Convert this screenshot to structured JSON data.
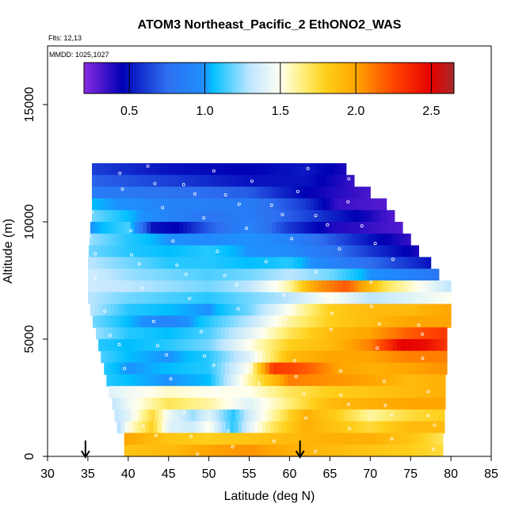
{
  "chart_data": {
    "type": "heatmap",
    "title": "ATOM3 Northeast_Pacific_2 EthONO2_WAS",
    "flights_label": "Flts: 12,13",
    "dates_label": "MMDD: 1025,1027",
    "xlabel": "Latitude (deg N)",
    "ylabel": "Altitude (m)",
    "xlim": [
      30,
      85
    ],
    "ylim": [
      0,
      17500
    ],
    "x_ticks": [
      "30",
      "35",
      "40",
      "45",
      "50",
      "55",
      "60",
      "65",
      "70",
      "75",
      "80",
      "85"
    ],
    "y_ticks": [
      "0",
      "5000",
      "10000",
      "15000"
    ],
    "colorbar": {
      "range": [
        0.2,
        2.65
      ],
      "ticks": [
        "0.5",
        "1.0",
        "1.5",
        "2.0",
        "2.5"
      ],
      "stops": [
        {
          "v": 0.2,
          "c": "#8a2be2"
        },
        {
          "v": 0.45,
          "c": "#0000b4"
        },
        {
          "v": 0.75,
          "c": "#2e6ff0"
        },
        {
          "v": 1.0,
          "c": "#1e90ff"
        },
        {
          "v": 1.05,
          "c": "#00bfff"
        },
        {
          "v": 1.3,
          "c": "#bfe6ff"
        },
        {
          "v": 1.5,
          "c": "#fffff0"
        },
        {
          "v": 1.65,
          "c": "#ffef7a"
        },
        {
          "v": 1.8,
          "c": "#ffcf1a"
        },
        {
          "v": 2.0,
          "c": "#ffa500"
        },
        {
          "v": 2.25,
          "c": "#ff4500"
        },
        {
          "v": 2.5,
          "c": "#e60000"
        },
        {
          "v": 2.65,
          "c": "#a52a2a"
        }
      ]
    },
    "arrows_lat": [
      34.7,
      61.3
    ],
    "altitude_bins": [
      {
        "alt": 12250,
        "lat_min": 35.5,
        "lat_max": 67,
        "x": [
          35.5,
          45,
          55,
          62,
          67
        ],
        "v": [
          0.62,
          0.5,
          0.45,
          0.52,
          0.4
        ]
      },
      {
        "alt": 11750,
        "lat_min": 35.5,
        "lat_max": 68,
        "x": [
          35.5,
          45,
          55,
          62,
          68
        ],
        "v": [
          0.72,
          0.62,
          0.5,
          0.5,
          0.35
        ]
      },
      {
        "alt": 11250,
        "lat_min": 35.5,
        "lat_max": 70,
        "x": [
          35.5,
          45,
          55,
          62,
          70
        ],
        "v": [
          0.85,
          0.78,
          0.7,
          0.45,
          0.32
        ]
      },
      {
        "alt": 10750,
        "lat_min": 35.5,
        "lat_max": 72,
        "x": [
          35.5,
          45,
          55,
          62,
          66,
          72
        ],
        "v": [
          1.05,
          0.9,
          0.85,
          0.6,
          0.35,
          0.3
        ]
      },
      {
        "alt": 10250,
        "lat_min": 35.5,
        "lat_max": 73,
        "x": [
          35.5,
          40,
          45,
          50,
          55,
          60,
          65,
          70,
          73
        ],
        "v": [
          1.2,
          1.05,
          0.9,
          0.8,
          0.85,
          0.7,
          0.55,
          0.4,
          0.3
        ]
      },
      {
        "alt": 9750,
        "lat_min": 35.3,
        "lat_max": 74,
        "x": [
          35.3,
          40,
          43,
          46,
          50,
          55,
          60,
          65,
          70,
          74
        ],
        "v": [
          1.0,
          1.15,
          0.5,
          0.45,
          0.7,
          0.9,
          0.6,
          0.4,
          0.35,
          0.3
        ]
      },
      {
        "alt": 9250,
        "lat_min": 35.2,
        "lat_max": 75,
        "x": [
          35.2,
          40,
          45,
          50,
          55,
          60,
          65,
          70,
          75
        ],
        "v": [
          1.25,
          1.1,
          1.0,
          0.95,
          1.0,
          0.9,
          0.7,
          0.5,
          0.35
        ]
      },
      {
        "alt": 8750,
        "lat_min": 35.1,
        "lat_max": 76,
        "x": [
          35.1,
          40,
          45,
          50,
          55,
          60,
          65,
          70,
          76
        ],
        "v": [
          1.2,
          1.1,
          1.05,
          1.1,
          1.0,
          0.95,
          0.8,
          0.6,
          0.4
        ]
      },
      {
        "alt": 8250,
        "lat_min": 35,
        "lat_max": 77.5,
        "x": [
          35,
          40,
          45,
          50,
          55,
          60,
          65,
          70,
          77.5
        ],
        "v": [
          1.3,
          1.2,
          1.1,
          1.1,
          1.05,
          1.1,
          0.9,
          0.75,
          0.5
        ]
      },
      {
        "alt": 7750,
        "lat_min": 35,
        "lat_max": 78.5,
        "x": [
          35,
          40,
          45,
          50,
          55,
          60,
          65,
          70,
          78.5
        ],
        "v": [
          1.35,
          1.25,
          1.2,
          1.15,
          1.2,
          1.3,
          1.2,
          1.0,
          0.8
        ]
      },
      {
        "alt": 7250,
        "lat_min": 35,
        "lat_max": 80,
        "x": [
          35,
          40,
          45,
          50,
          55,
          60,
          63,
          67,
          72,
          80
        ],
        "v": [
          1.35,
          1.3,
          1.25,
          1.2,
          1.3,
          1.6,
          2.0,
          2.2,
          1.7,
          1.3
        ]
      },
      {
        "alt": 6750,
        "lat_min": 35,
        "lat_max": 80,
        "x": [
          35,
          40,
          45,
          50,
          55,
          60,
          65,
          70,
          75,
          80
        ],
        "v": [
          1.3,
          1.2,
          1.15,
          1.1,
          1.2,
          1.3,
          1.5,
          1.3,
          1.4,
          1.5
        ]
      },
      {
        "alt": 6250,
        "lat_min": 35.3,
        "lat_max": 80,
        "x": [
          35.3,
          40,
          45,
          50,
          55,
          60,
          65,
          70,
          75,
          80
        ],
        "v": [
          1.3,
          1.1,
          1.05,
          1.0,
          1.2,
          1.5,
          1.8,
          1.9,
          1.9,
          2.0
        ]
      },
      {
        "alt": 5750,
        "lat_min": 35.6,
        "lat_max": 80,
        "x": [
          35.6,
          40,
          45,
          50,
          55,
          60,
          65,
          70,
          75,
          80
        ],
        "v": [
          1.2,
          1.05,
          0.9,
          1.1,
          1.3,
          1.6,
          1.8,
          1.9,
          2.0,
          2.0
        ]
      },
      {
        "alt": 5250,
        "lat_min": 36,
        "lat_max": 79.5,
        "x": [
          36,
          40,
          45,
          50,
          55,
          60,
          65,
          70,
          75,
          79.5
        ],
        "v": [
          1.25,
          1.1,
          1.05,
          1.15,
          1.4,
          1.7,
          1.9,
          2.0,
          2.2,
          2.3
        ]
      },
      {
        "alt": 4750,
        "lat_min": 36.3,
        "lat_max": 79.5,
        "x": [
          36.3,
          40,
          45,
          50,
          55,
          60,
          65,
          70,
          74,
          77,
          79.5
        ],
        "v": [
          1.1,
          1.05,
          1.1,
          1.2,
          1.5,
          1.8,
          1.9,
          2.1,
          2.5,
          2.45,
          2.3
        ]
      },
      {
        "alt": 4250,
        "lat_min": 36.6,
        "lat_max": 79.5,
        "x": [
          36.6,
          40,
          45,
          50,
          55,
          60,
          65,
          70,
          75,
          79.5
        ],
        "v": [
          1.15,
          1.05,
          1.0,
          1.1,
          1.4,
          1.9,
          2.0,
          2.0,
          2.1,
          2.1
        ]
      },
      {
        "alt": 3750,
        "lat_min": 37,
        "lat_max": 79.5,
        "x": [
          37,
          40,
          45,
          50,
          55,
          58,
          62,
          66,
          70,
          75,
          79.5
        ],
        "v": [
          1.1,
          1.0,
          1.05,
          1.1,
          1.5,
          2.3,
          2.2,
          2.0,
          1.95,
          2.0,
          2.05
        ]
      },
      {
        "alt": 3250,
        "lat_min": 37.3,
        "lat_max": 79.3,
        "x": [
          37.3,
          40,
          45,
          50,
          55,
          60,
          65,
          70,
          75,
          79.3
        ],
        "v": [
          1.1,
          1.05,
          1.0,
          1.05,
          1.6,
          2.1,
          2.05,
          2.0,
          1.9,
          1.95
        ]
      },
      {
        "alt": 2750,
        "lat_min": 37.6,
        "lat_max": 79.3,
        "x": [
          37.6,
          40,
          45,
          50,
          55,
          60,
          65,
          70,
          75,
          79.3
        ],
        "v": [
          1.4,
          1.45,
          1.55,
          1.5,
          1.5,
          1.7,
          1.8,
          1.85,
          1.9,
          1.95
        ]
      },
      {
        "alt": 2250,
        "lat_min": 38,
        "lat_max": 79.3,
        "x": [
          38,
          40,
          45,
          50,
          55,
          60,
          65,
          70,
          75,
          79.3
        ],
        "v": [
          1.3,
          1.45,
          1.7,
          1.6,
          1.4,
          1.65,
          1.9,
          1.95,
          2.0,
          2.0
        ]
      },
      {
        "alt": 1750,
        "lat_min": 38.3,
        "lat_max": 79.2,
        "x": [
          38.3,
          40,
          43,
          45,
          48,
          50,
          53,
          55,
          58,
          62,
          66,
          70,
          75,
          79.2
        ],
        "v": [
          1.3,
          1.4,
          1.75,
          1.45,
          1.25,
          1.4,
          1.1,
          1.35,
          1.6,
          1.95,
          1.8,
          1.6,
          1.75,
          1.8
        ]
      },
      {
        "alt": 1250,
        "lat_min": 38.6,
        "lat_max": 79.2,
        "x": [
          38.6,
          40,
          43,
          45,
          48,
          50,
          53,
          55,
          58,
          62,
          66,
          70,
          75,
          79.2
        ],
        "v": [
          1.25,
          1.5,
          1.8,
          1.4,
          1.35,
          1.5,
          1.1,
          1.4,
          1.7,
          1.95,
          1.85,
          1.75,
          1.9,
          1.9
        ]
      },
      {
        "alt": 750,
        "lat_min": 39.5,
        "lat_max": 79,
        "x": [
          39.5,
          45,
          50,
          55,
          60,
          65,
          70,
          75,
          79
        ],
        "v": [
          2.0,
          1.85,
          1.8,
          1.85,
          1.9,
          1.95,
          1.95,
          1.85,
          1.7
        ]
      },
      {
        "alt": 250,
        "lat_min": 39.5,
        "lat_max": 79,
        "x": [
          39.5,
          45,
          50,
          55,
          60,
          65,
          70,
          75,
          79
        ],
        "v": [
          1.85,
          1.9,
          2.0,
          2.05,
          1.95,
          1.9,
          1.85,
          1.8,
          1.75
        ]
      }
    ]
  }
}
